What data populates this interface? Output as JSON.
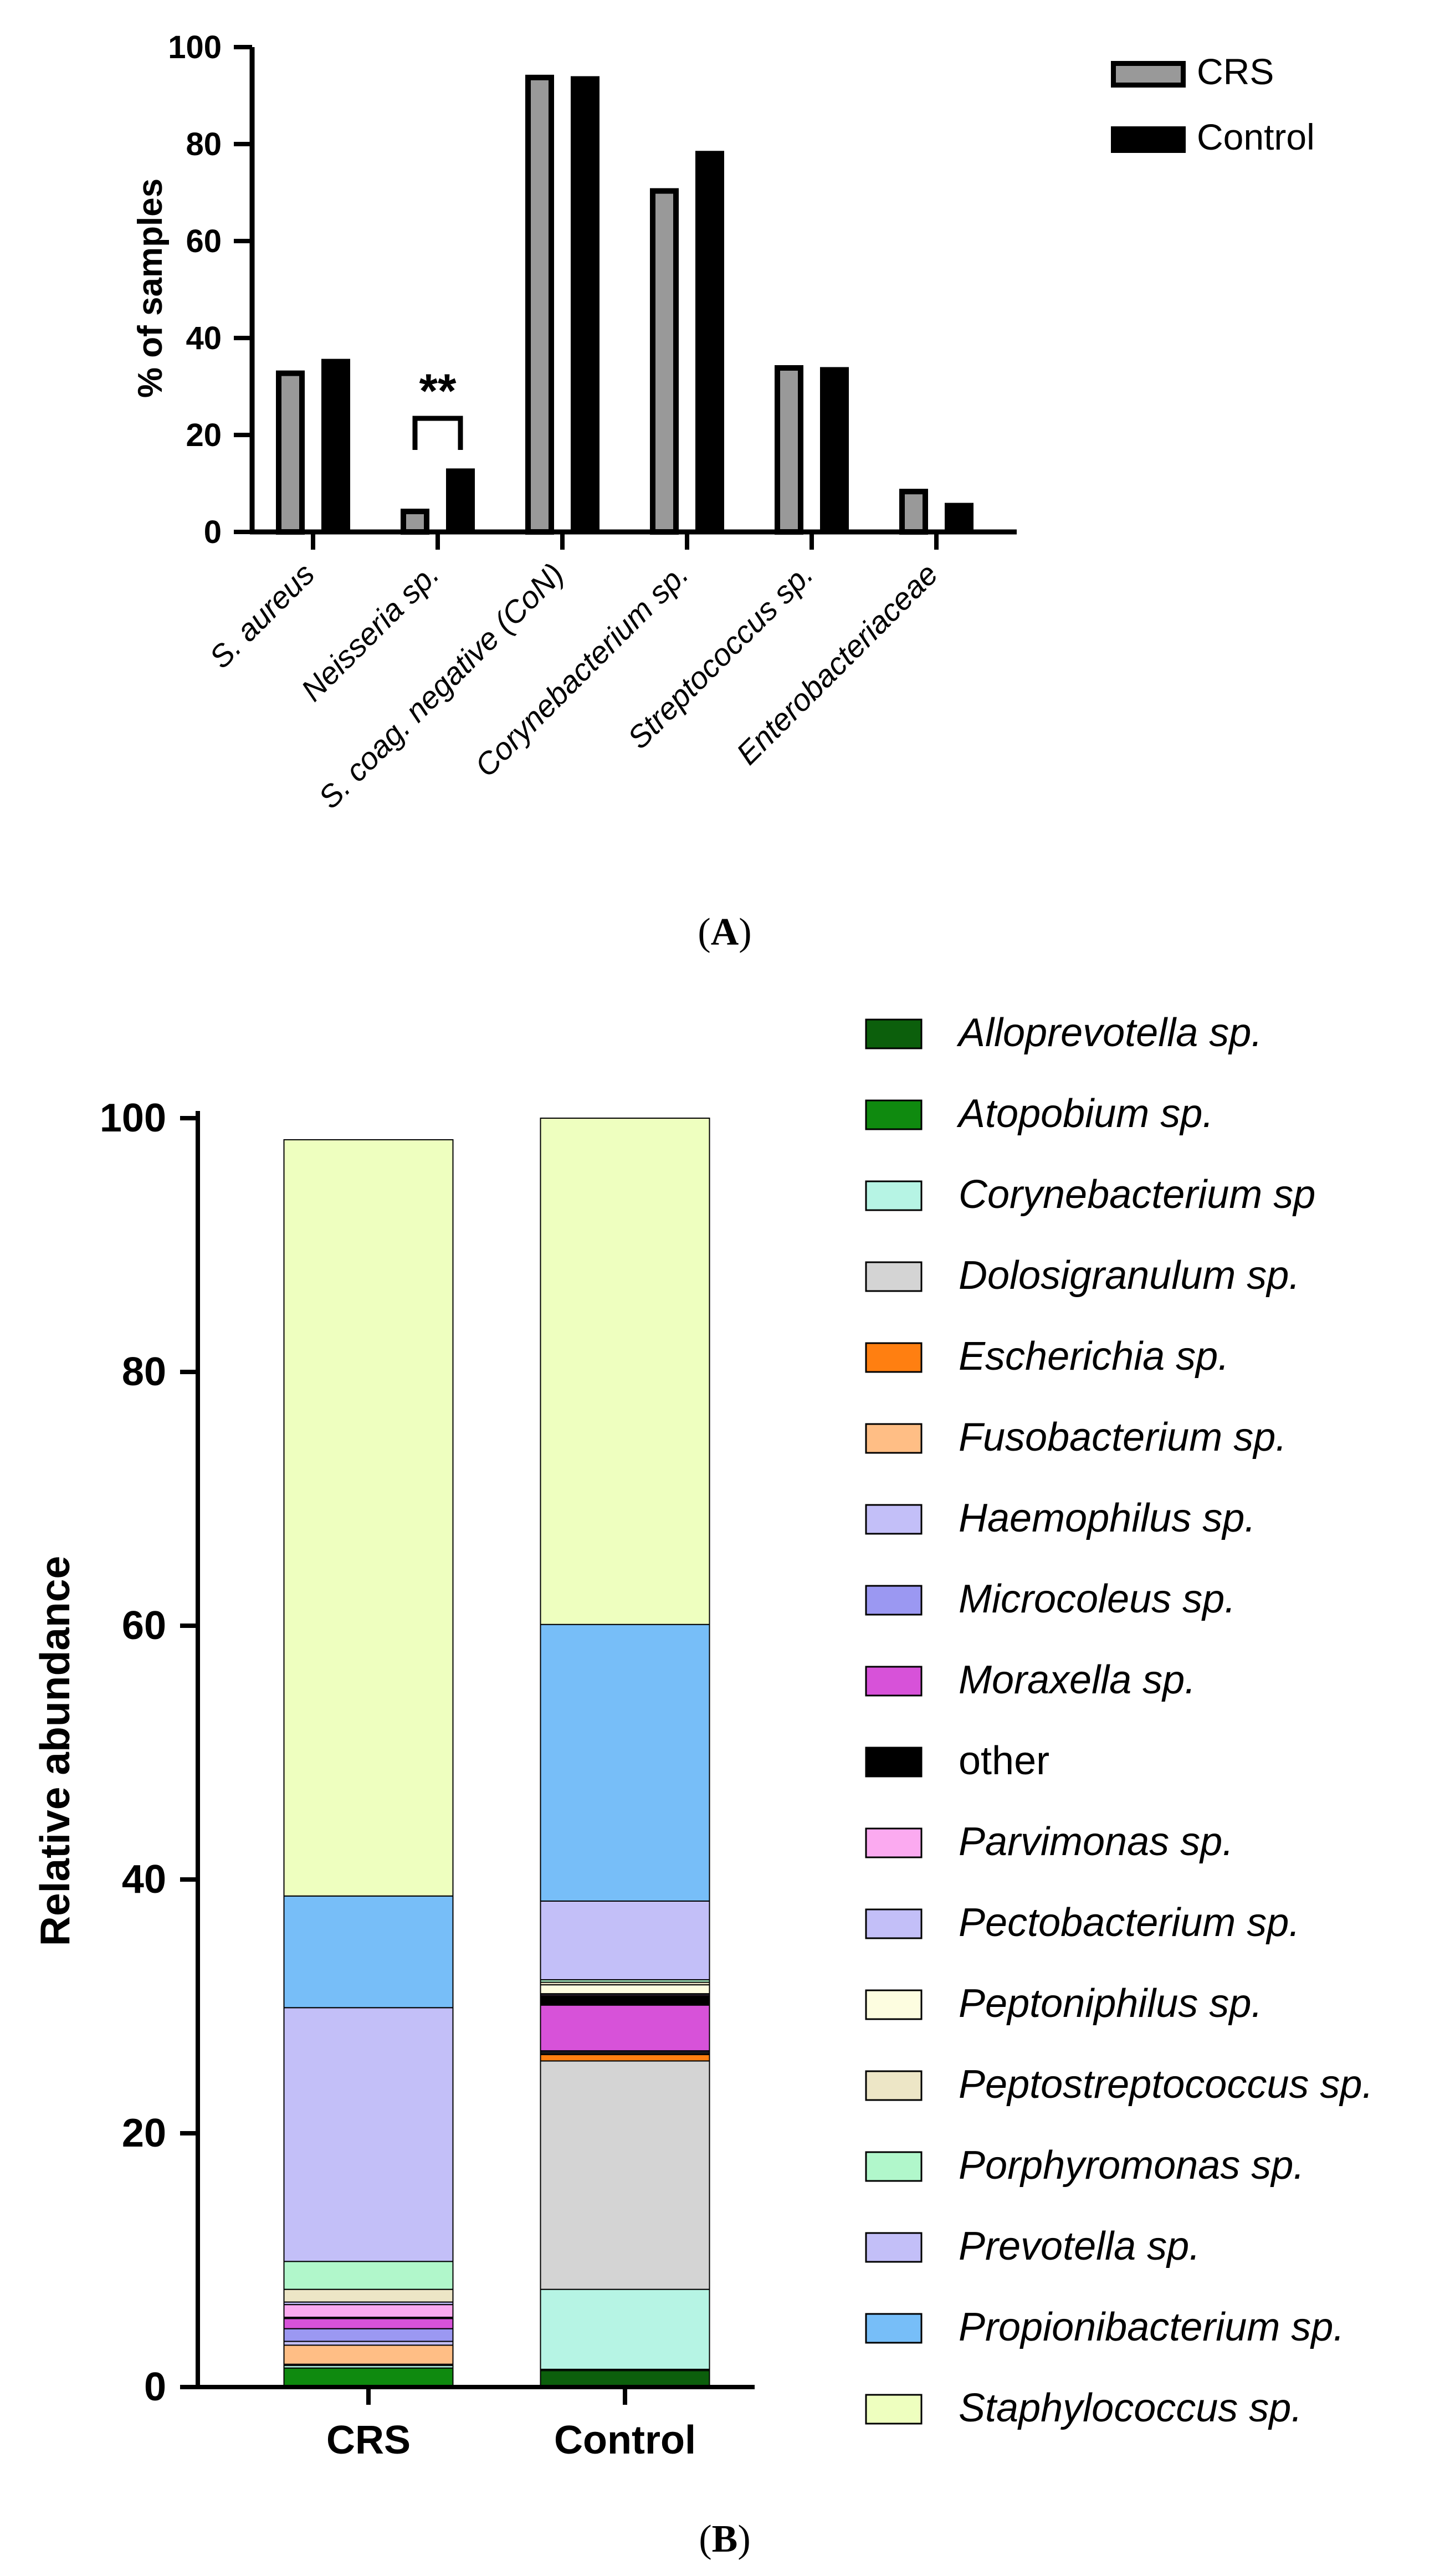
{
  "panel_labels": {
    "a": "A",
    "b": "B"
  },
  "chart_data": [
    {
      "type": "bar",
      "panel": "A",
      "title": "",
      "xlabel": "",
      "ylabel": "% of samples",
      "ylim": [
        0,
        100
      ],
      "yticks": [
        0,
        20,
        40,
        60,
        80,
        100
      ],
      "categories": [
        "S. aureus",
        "Neisseria sp.",
        "S. coag. negative (CoN)",
        "Corynebacterium sp.",
        "Streptococcus sp.",
        "Enterobacteriaceae"
      ],
      "series": [
        {
          "name": "CRS",
          "color": "#999999",
          "edge": "#000000",
          "values": [
            33.3,
            4.8,
            94.3,
            70.9,
            34.4,
            8.9
          ]
        },
        {
          "name": "Control",
          "color": "#000000",
          "edge": "#000000",
          "values": [
            35.7,
            13.1,
            94.0,
            78.6,
            34.0,
            6.0
          ]
        }
      ],
      "legend_position": "top-right",
      "annotations": [
        {
          "text": "**",
          "category_index": 1
        }
      ]
    },
    {
      "type": "stacked-bar",
      "panel": "B",
      "title": "",
      "xlabel": "",
      "ylabel": "Relative abundance",
      "ylim": [
        0,
        100
      ],
      "yticks": [
        0,
        20,
        40,
        60,
        80,
        100
      ],
      "categories": [
        "CRS",
        "Control"
      ],
      "legend_position": "right",
      "series": [
        {
          "name": "Alloprevotella sp.",
          "italic": true,
          "color": "#0c5f0c",
          "values": [
            0.1,
            1.3
          ]
        },
        {
          "name": "Atopobium sp.",
          "italic": true,
          "color": "#0f8a0f",
          "values": [
            1.4,
            0.1
          ]
        },
        {
          "name": "Corynebacterium sp",
          "italic": true,
          "color": "#b6f4e4",
          "values": [
            0.2,
            6.3
          ]
        },
        {
          "name": "Dolosigranulum sp.",
          "italic": true,
          "color": "#d4d4d4",
          "values": [
            0.1,
            18.0
          ]
        },
        {
          "name": "Escherichia sp.",
          "italic": true,
          "color": "#ff7f11",
          "values": [
            0.0,
            0.5
          ]
        },
        {
          "name": "Fusobacterium sp.",
          "italic": true,
          "color": "#ffbe85",
          "values": [
            1.5,
            0.1
          ]
        },
        {
          "name": "Haemophilus sp.",
          "italic": true,
          "color": "#c3bff8",
          "values": [
            0.3,
            0.1
          ]
        },
        {
          "name": "Microcoleus sp.",
          "italic": true,
          "color": "#9b98f2",
          "values": [
            1.0,
            0.1
          ]
        },
        {
          "name": "Moraxella sp.",
          "italic": true,
          "color": "#d752d9",
          "values": [
            0.8,
            3.6
          ]
        },
        {
          "name": "other",
          "italic": false,
          "color": "#000000",
          "values": [
            0.1,
            0.7
          ]
        },
        {
          "name": "Parvimonas sp.",
          "italic": true,
          "color": "#fbaaf0",
          "values": [
            1.0,
            0.1
          ]
        },
        {
          "name": "Pectobacterium sp.",
          "italic": true,
          "color": "#c3bff8",
          "values": [
            0.2,
            0.1
          ]
        },
        {
          "name": "Peptoniphilus sp.",
          "italic": true,
          "color": "#fdfde0",
          "values": [
            0.0,
            0.7
          ]
        },
        {
          "name": "Peptostreptococcus sp.",
          "italic": true,
          "color": "#ede6c6",
          "values": [
            1.0,
            0.2
          ]
        },
        {
          "name": "Porphyromonas sp.",
          "italic": true,
          "color": "#b1f7cb",
          "values": [
            2.2,
            0.2
          ]
        },
        {
          "name": "Prevotella sp.",
          "italic": true,
          "color": "#c3bff8",
          "values": [
            20.0,
            6.2
          ]
        },
        {
          "name": "Propionibacterium sp.",
          "italic": true,
          "color": "#77bef8",
          "values": [
            8.8,
            21.8
          ]
        },
        {
          "name": "Staphylococcus sp.",
          "italic": true,
          "color": "#eeffbf",
          "values": [
            59.6,
            39.9
          ]
        }
      ]
    }
  ]
}
